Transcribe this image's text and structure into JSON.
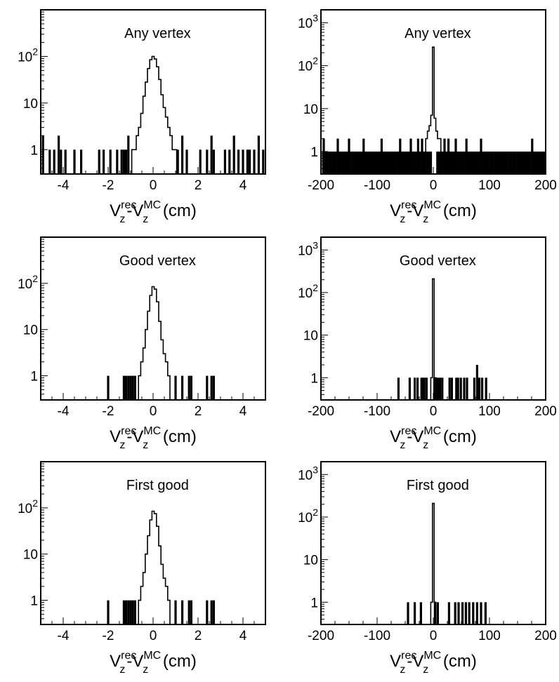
{
  "figure": {
    "xlabel_parts": [
      "V",
      "rec",
      "z",
      "-V",
      "MC",
      "z",
      " (cm)"
    ]
  },
  "chart_data": [
    {
      "type": "histogram",
      "title": "Any vertex",
      "xlabel": "Vzrec-VzMC (cm)",
      "ylabel": "",
      "xlim": [
        -5,
        5
      ],
      "ylim": [
        0.3,
        1000
      ],
      "yscale": "log",
      "x_ticks": [
        "-4",
        "-2",
        "0",
        "2",
        "4"
      ],
      "y_ticks": [
        {
          "mant": "1",
          "exp": ""
        },
        {
          "mant": "10",
          "exp": ""
        },
        {
          "mant": "10",
          "exp": "2"
        }
      ],
      "grid": false,
      "legend": "none",
      "core": {
        "x": [
          -0.9,
          -0.8,
          -0.7,
          -0.6,
          -0.5,
          -0.4,
          -0.3,
          -0.2,
          -0.1,
          0.0,
          0.1,
          0.2,
          0.3,
          0.4,
          0.5,
          0.6,
          0.7,
          0.8,
          0.9,
          1.0
        ],
        "y": [
          1,
          1,
          2,
          3,
          6,
          14,
          28,
          55,
          85,
          100,
          88,
          60,
          32,
          15,
          8,
          5,
          3,
          2,
          1,
          1
        ]
      },
      "spikes": {
        "x": [
          -4.9,
          -4.6,
          -4.4,
          -4.2,
          -4.1,
          -3.9,
          -3.5,
          -3.2,
          -2.4,
          -2.2,
          -1.9,
          -1.6,
          -1.4,
          -1.3,
          -1.2,
          -1.1,
          1.1,
          1.3,
          1.5,
          2.1,
          2.4,
          2.6,
          2.7,
          3.2,
          3.4,
          3.6,
          3.8,
          4.0,
          4.2,
          4.3,
          4.5,
          4.7,
          4.9
        ],
        "y": [
          2,
          1,
          1,
          2,
          1,
          1,
          1,
          1,
          1,
          1,
          1,
          1,
          1,
          1,
          1,
          2,
          1,
          2,
          1,
          1,
          1,
          2,
          1,
          1,
          1,
          2,
          1,
          1,
          1,
          1,
          1,
          2,
          1
        ]
      }
    },
    {
      "type": "histogram",
      "title": "Any vertex",
      "xlabel": "Vzrec-VzMC (cm)",
      "ylabel": "",
      "xlim": [
        -200,
        200
      ],
      "ylim": [
        0.3,
        2000
      ],
      "yscale": "log",
      "x_ticks": [
        "-200",
        "-100",
        "0",
        "100",
        "200"
      ],
      "y_ticks": [
        {
          "mant": "1",
          "exp": ""
        },
        {
          "mant": "10",
          "exp": ""
        },
        {
          "mant": "10",
          "exp": "2"
        },
        {
          "mant": "10",
          "exp": "3"
        }
      ],
      "grid": false,
      "legend": "none",
      "core": {
        "x": [
          -12,
          -9,
          -6,
          -3,
          0,
          3,
          6,
          9,
          12
        ],
        "y": [
          2,
          3,
          4,
          7,
          270,
          6,
          3,
          2,
          2
        ]
      },
      "spikes": {
        "x": [
          -195,
          -189,
          -183,
          -176,
          -170,
          -163,
          -157,
          -150,
          -144,
          -137,
          -131,
          -124,
          -118,
          -111,
          -105,
          -98,
          -92,
          -85,
          -79,
          -72,
          -66,
          -59,
          -53,
          -46,
          -40,
          -33,
          -27,
          -20,
          20,
          27,
          33,
          40,
          46,
          53,
          59,
          66,
          72,
          79,
          85,
          92,
          98,
          105,
          111,
          118,
          124,
          131,
          137,
          144,
          150,
          157,
          163,
          170,
          176,
          183,
          189,
          195
        ],
        "y": [
          2,
          1,
          1,
          1,
          2,
          1,
          1,
          2,
          1,
          1,
          1,
          2,
          1,
          1,
          1,
          1,
          2,
          1,
          1,
          1,
          1,
          2,
          1,
          1,
          2,
          1,
          2,
          2,
          2,
          2,
          1,
          2,
          1,
          1,
          2,
          1,
          1,
          1,
          2,
          1,
          1,
          1,
          1,
          1,
          1,
          1,
          1,
          1,
          1,
          1,
          1,
          1,
          2,
          1,
          1,
          1
        ]
      }
    },
    {
      "type": "histogram",
      "title": "Good vertex",
      "xlabel": "Vzrec-VzMC (cm)",
      "ylabel": "",
      "xlim": [
        -5,
        5
      ],
      "ylim": [
        0.3,
        1000
      ],
      "yscale": "log",
      "x_ticks": [
        "-4",
        "-2",
        "0",
        "2",
        "4"
      ],
      "y_ticks": [
        {
          "mant": "1",
          "exp": ""
        },
        {
          "mant": "10",
          "exp": ""
        },
        {
          "mant": "10",
          "exp": "2"
        }
      ],
      "grid": false,
      "legend": "none",
      "core": {
        "x": [
          -0.6,
          -0.5,
          -0.4,
          -0.3,
          -0.2,
          -0.1,
          0.0,
          0.1,
          0.2,
          0.3,
          0.4,
          0.5,
          0.6,
          0.7
        ],
        "y": [
          1,
          2,
          4,
          10,
          25,
          55,
          85,
          75,
          40,
          15,
          6,
          3,
          2,
          1
        ]
      },
      "spikes": {
        "x": [
          -2.0,
          -1.3,
          -1.2,
          -1.1,
          -1.0,
          -0.9,
          -0.8,
          1.0,
          1.3,
          1.6,
          1.7,
          2.4,
          2.6,
          2.7
        ],
        "y": [
          1,
          1,
          1,
          1,
          1,
          1,
          1,
          1,
          1,
          1,
          1,
          1,
          1,
          1
        ]
      }
    },
    {
      "type": "histogram",
      "title": "Good vertex",
      "xlabel": "Vzrec-VzMC (cm)",
      "ylabel": "",
      "xlim": [
        -200,
        200
      ],
      "ylim": [
        0.3,
        2000
      ],
      "yscale": "log",
      "x_ticks": [
        "-200",
        "-100",
        "0",
        "100",
        "200"
      ],
      "y_ticks": [
        {
          "mant": "1",
          "exp": ""
        },
        {
          "mant": "10",
          "exp": ""
        },
        {
          "mant": "10",
          "exp": "2"
        },
        {
          "mant": "10",
          "exp": "3"
        }
      ],
      "grid": false,
      "legend": "none",
      "core": {
        "x": [
          -3,
          0,
          3
        ],
        "y": [
          1,
          210,
          1
        ]
      },
      "spikes": {
        "x": [
          -62,
          -42,
          -33,
          -28,
          -21,
          -18,
          -16,
          -12,
          2,
          5,
          8,
          12,
          16,
          29,
          33,
          41,
          44,
          49,
          55,
          60,
          73,
          78,
          82,
          87,
          94
        ],
        "y": [
          1,
          1,
          1,
          1,
          1,
          1,
          1,
          1,
          1,
          1,
          1,
          1,
          1,
          1,
          1,
          1,
          1,
          1,
          1,
          1,
          1,
          2,
          1,
          1,
          1
        ]
      }
    },
    {
      "type": "histogram",
      "title": "First good",
      "xlabel": "Vzrec-VzMC (cm)",
      "ylabel": "",
      "xlim": [
        -5,
        5
      ],
      "ylim": [
        0.3,
        1000
      ],
      "yscale": "log",
      "x_ticks": [
        "-4",
        "-2",
        "0",
        "2",
        "4"
      ],
      "y_ticks": [
        {
          "mant": "1",
          "exp": ""
        },
        {
          "mant": "10",
          "exp": ""
        },
        {
          "mant": "10",
          "exp": "2"
        }
      ],
      "grid": false,
      "legend": "none",
      "core": {
        "x": [
          -0.6,
          -0.5,
          -0.4,
          -0.3,
          -0.2,
          -0.1,
          0.0,
          0.1,
          0.2,
          0.3,
          0.4,
          0.5,
          0.6,
          0.7
        ],
        "y": [
          1,
          2,
          4,
          10,
          25,
          55,
          85,
          75,
          40,
          15,
          6,
          3,
          2,
          1
        ]
      },
      "spikes": {
        "x": [
          -2.0,
          -1.3,
          -1.2,
          -1.1,
          -1.0,
          -0.9,
          -0.8,
          1.0,
          1.3,
          1.6,
          1.7,
          2.4,
          2.6,
          2.7
        ],
        "y": [
          1,
          1,
          1,
          1,
          1,
          1,
          1,
          1,
          1,
          1,
          1,
          1,
          1,
          1
        ]
      }
    },
    {
      "type": "histogram",
      "title": "First good",
      "xlabel": "Vzrec-VzMC (cm)",
      "ylabel": "",
      "xlim": [
        -200,
        200
      ],
      "ylim": [
        0.3,
        2000
      ],
      "yscale": "log",
      "x_ticks": [
        "-200",
        "-100",
        "0",
        "100",
        "200"
      ],
      "y_ticks": [
        {
          "mant": "1",
          "exp": ""
        },
        {
          "mant": "10",
          "exp": ""
        },
        {
          "mant": "10",
          "exp": "2"
        },
        {
          "mant": "10",
          "exp": "3"
        }
      ],
      "grid": false,
      "legend": "none",
      "core": {
        "x": [
          -3,
          0,
          3
        ],
        "y": [
          1,
          210,
          1
        ]
      },
      "spikes": {
        "x": [
          -45,
          -33,
          -22,
          3,
          8,
          28,
          39,
          45,
          52,
          58,
          64,
          71,
          78,
          85,
          93
        ],
        "y": [
          1,
          1,
          1,
          1,
          1,
          1,
          1,
          1,
          1,
          1,
          1,
          1,
          1,
          1,
          1
        ]
      }
    }
  ]
}
